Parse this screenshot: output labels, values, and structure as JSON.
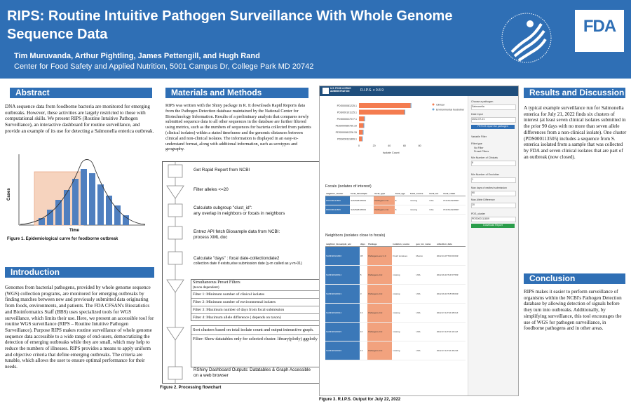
{
  "header": {
    "title": "RIPS: Routine Intuitive Pathogen Surveillance With Whole Genome Sequence Data",
    "authors": "Tim Muruvanda, Arthur Pightling, James Pettengill, and Hugh Rand",
    "affiliation": "Center for Food Safety and Applied Nutrition, 5001 Campus Dr, College Park MD 20742",
    "fda_logo": "FDA",
    "colors": {
      "brand": "#2f6fb5",
      "fda_blue": "#2f6fb5"
    }
  },
  "abstract": {
    "heading": "Abstract",
    "text": "DNA sequence data from foodborne bacteria are monitored for emerging outbreaks. However, these activities are largely restricted to those with computational skills. We present RIPS (Routine Intuitive Pathogen Surveillance), an interactive dashboard for routine surveillance, and provide an example of its use for detecting a Salmonella enterica outbreak.",
    "figure1": {
      "ylabel": "Cases",
      "xlabel": "Time",
      "caption": "Figure 1. Epidemiological curve for foodborne outbreak"
    }
  },
  "introduction": {
    "heading": "Introduction",
    "text": "Genomes from bacterial pathogens, provided by whole genome sequence (WGS) collection programs, are monitored for emerging outbreaks by finding matches between new and previously submitted data originating from foods, environments, and patients. The FDA CFSAN's Biostatistics and Bioinformatics Staff (BBS) uses specialized tools for WGS surveillance, which limits their use. Here, we present an accessible tool for routine WGS surveillance (RIPS – Routine Intuitive Pathogen Surveillance). Purpose RIPS makes routine surveillance of whole genome sequence data accessible to a wide range of end-users, democratizing the detection of emerging outbreaks while they are small, which may help to reduce the numbers of illnesses. RIPS provides a means to apply uniform and objective criteria that define emerging outbreaks. The criteria are tunable, which allows the user to ensure optimal performance for their needs."
  },
  "methods": {
    "heading": "Materials and Methods",
    "text": "RIPS was written with the Shiny package in R. It downloads Rapid Reports data from the Pathogen Detection database maintained by the National Center for Biotechnology Information. Results of a preliminary analysis that compares newly submitted sequence data to all other sequences in the database are further filtered using metrics, such as the numbers of sequences for bacteria collected from patients (clinical isolates) within a stated timeframe and the genomic distances between clinical and non-clinical isolates. The information is displayed in an easy-to-understand format, along with additional information, such as serotypes and geography.",
    "flowchart": {
      "steps": [
        {
          "main": "Get Rapid Report from NCBI"
        },
        {
          "main": "Filter alleles <=20"
        },
        {
          "main": "Calculate subgroup \"clust_id\":",
          "sub": "any overlap in neighbors or focals in neighbors"
        },
        {
          "main": "Entrez API fetch Biosample data from NCBI:",
          "sub": "process XML doc"
        },
        {
          "main": "Calculate \"days\" : focal date-collectiondate2",
          "sub": "collection date if exists,else submission date (y-m called as y-m-01)"
        }
      ],
      "filters_title": "Simultaneous Preset Filters",
      "filters_sub": "(taxon dependent)",
      "filters": [
        "Filter 1: Minimum number of clinical isolates",
        "Filter 2: Minimum number of environmental isolates",
        "Filter 3: Maximum number of days from focal submission",
        "Filter 4: Maximum allele difference ( depends on taxon)"
      ],
      "sort_text": "Sort clusters based on total isolate count and output interactive graph.",
      "sort_filter": "Filter: Show datatables only for selected cluster. library(plotly) ggplotly",
      "output_text": "RShiny Dashboard Outputs: Datatables & Graph Accessible on a web browser",
      "caption": "Figure 2. Processing flowchart"
    }
  },
  "rips_app": {
    "brand": "U.S. FOOD & DRUG ADMINISTRATION",
    "title": "R.I.P.S. v 0.8.9",
    "chart_data": {
      "type": "bar",
      "orientation": "horizontal",
      "categories": [
        "PDS000081225.1",
        "PDS000101125.1",
        "PDS000027077.1",
        "PDS000080750.10",
        "PDS000081226.15",
        "PDS000111809.1"
      ],
      "series": [
        {
          "name": "Clinical",
          "values": [
            68,
            60,
            7,
            6,
            5,
            4
          ],
          "color": "#f47c50"
        },
        {
          "name": "Environmental food/other",
          "values": [
            1,
            1,
            1,
            1,
            1,
            1
          ],
          "color": "#6aa8d8"
        }
      ],
      "xlabel": "Isolate Count",
      "xticks": [
        "0",
        "20",
        "40",
        "60",
        "80"
      ],
      "xlim": [
        0,
        85
      ]
    },
    "focals_heading": "Focals (isolates of interest)",
    "focals_columns": [
      "neighbor_cluster",
      "focal_biosample",
      "focal_type",
      "focal_age",
      "focal_source",
      "focal_loc",
      "focal_strain"
    ],
    "focals_rows": [
      [
        "PDS000111809",
        "SAMN28439501",
        "Pathogens-CLI",
        "8",
        "missing",
        "USA",
        "PNUSAS248667"
      ],
      [
        "PDS000111809",
        "SAMN28439501",
        "Pathogens-CLI",
        "8",
        "missing",
        "USA",
        "PNUSAS248667"
      ]
    ],
    "neighbors_heading": "Neighbors (isolates close to focals)",
    "neighbors_columns": [
      "neighbor_biosample_acc",
      "days",
      "Package",
      "isolation_source",
      "geo_loc_name",
      "collection_date"
    ],
    "neighbors_rows": [
      [
        "SAMN28441846",
        "38",
        "Pathogens-env 1.0",
        "Fresh tomatoes",
        "Mexico",
        "2022-04-07T00:00:00Z"
      ],
      [
        "SAMN28446614",
        "5",
        "Pathogens-CLI",
        "missing",
        "USA",
        "2022-06-16T14:57:55Z"
      ],
      [
        "SAMN28446913",
        "3",
        "Pathogens-CLI",
        "missing",
        "USA",
        "2022-06-16T15:58:00Z"
      ],
      [
        "SAMN28446914",
        "13",
        "Pathogens-CLI",
        "missing",
        "USA",
        "2022-07-11T16:38:01Z"
      ],
      [
        "SAMN28446915",
        "10",
        "Pathogens-CLI",
        "missing",
        "USA",
        "2022-07-11T16:44:11Z"
      ],
      [
        "SAMN28446916",
        "13",
        "Pathogens-CLI",
        "missing",
        "USA",
        "2022-07-11T16:45:22Z"
      ]
    ],
    "sidebar": {
      "choose_label": "Choose a pathogen",
      "choose_value": "Salmonella",
      "date_label": "Date Input",
      "date_value": "2022-07-21",
      "fetch_button": "FETCH report for pathogen",
      "filter_label": "Variable Filter",
      "filter_type_label": "Filter type",
      "filter_options": [
        "No Filter",
        "Preset Filters"
      ],
      "clinical_label": "Min Number of Clinicals",
      "clinical_value": "6",
      "env_label": "Min Number of Env/other",
      "env_value": "1",
      "days_label": "Max days of earliest submission",
      "days_value": "90",
      "allele_label": "Max Allele Difference",
      "allele_value": "20",
      "cluster_label": "PDS_cluster",
      "cluster_value": "PDS000111809",
      "download_button": "Download Report"
    },
    "caption": "Figure 3. R.I.P.S. Output for July 22, 2022"
  },
  "results": {
    "heading": "Results and Discussion",
    "text": "A typical example surveillance run for Salmonella enterica for July 21, 2022 finds six clusters of interest (at least seven clinical isolates submitted in the prior 90 days with no more than seven allele differences from a non-clinical isolate). One cluster (PDS000113505) includes a sequence from S. enterica isolated from a sample that was collected by FDA and seven clinical isolates that are part of an outbreak (now closed)."
  },
  "conclusion": {
    "heading": "Conclusion",
    "text": "RIPS makes it easier to perform surveillance of organisms within the NCBI's Pathogen Detection database by allowing detection of signals before they turn into outbreaks. Additionally, by simplifying surveillance, this tool encourages the use of WGS for pathogen surveillance, in foodborne pathogens and in other areas."
  }
}
